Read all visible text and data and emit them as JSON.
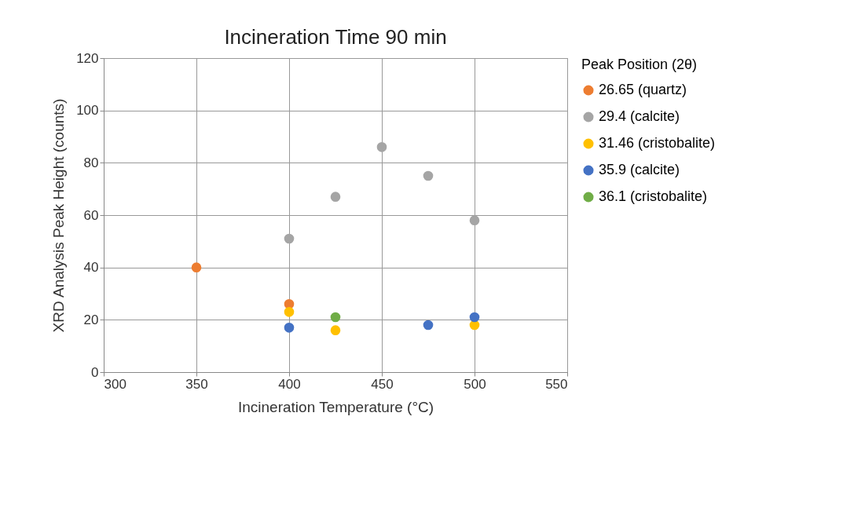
{
  "chart_data": {
    "type": "scatter",
    "title": "Incineration Time 90 min",
    "xlabel": "Incineration Temperature (°C)",
    "ylabel": "XRD Analysis Peak Height (counts)",
    "legend_title": "Peak Position (2θ)",
    "legend": "right",
    "grid": true,
    "marker": "circle",
    "xlim": [
      300,
      550
    ],
    "xticks": [
      300,
      350,
      400,
      450,
      500,
      550
    ],
    "ylim": [
      0,
      120
    ],
    "yticks": [
      0,
      20,
      40,
      60,
      80,
      100,
      120
    ],
    "series": [
      {
        "name": "26.65 (quartz)",
        "color": "#ed7d31",
        "x": [
          350,
          400
        ],
        "values": [
          40,
          26
        ]
      },
      {
        "name": "29.4 (calcite)",
        "color": "#a5a5a5",
        "x": [
          400,
          425,
          450,
          475,
          500
        ],
        "values": [
          51,
          67,
          86,
          75,
          58
        ]
      },
      {
        "name": "31.46 (cristobalite)",
        "color": "#ffc000",
        "x": [
          400,
          425,
          500
        ],
        "values": [
          23,
          16,
          18
        ]
      },
      {
        "name": "35.9 (calcite)",
        "color": "#4472c4",
        "x": [
          400,
          475,
          500
        ],
        "values": [
          17,
          18,
          21
        ]
      },
      {
        "name": "36.1 (cristobalite)",
        "color": "#70ad47",
        "x": [
          425
        ],
        "values": [
          21
        ]
      }
    ]
  }
}
